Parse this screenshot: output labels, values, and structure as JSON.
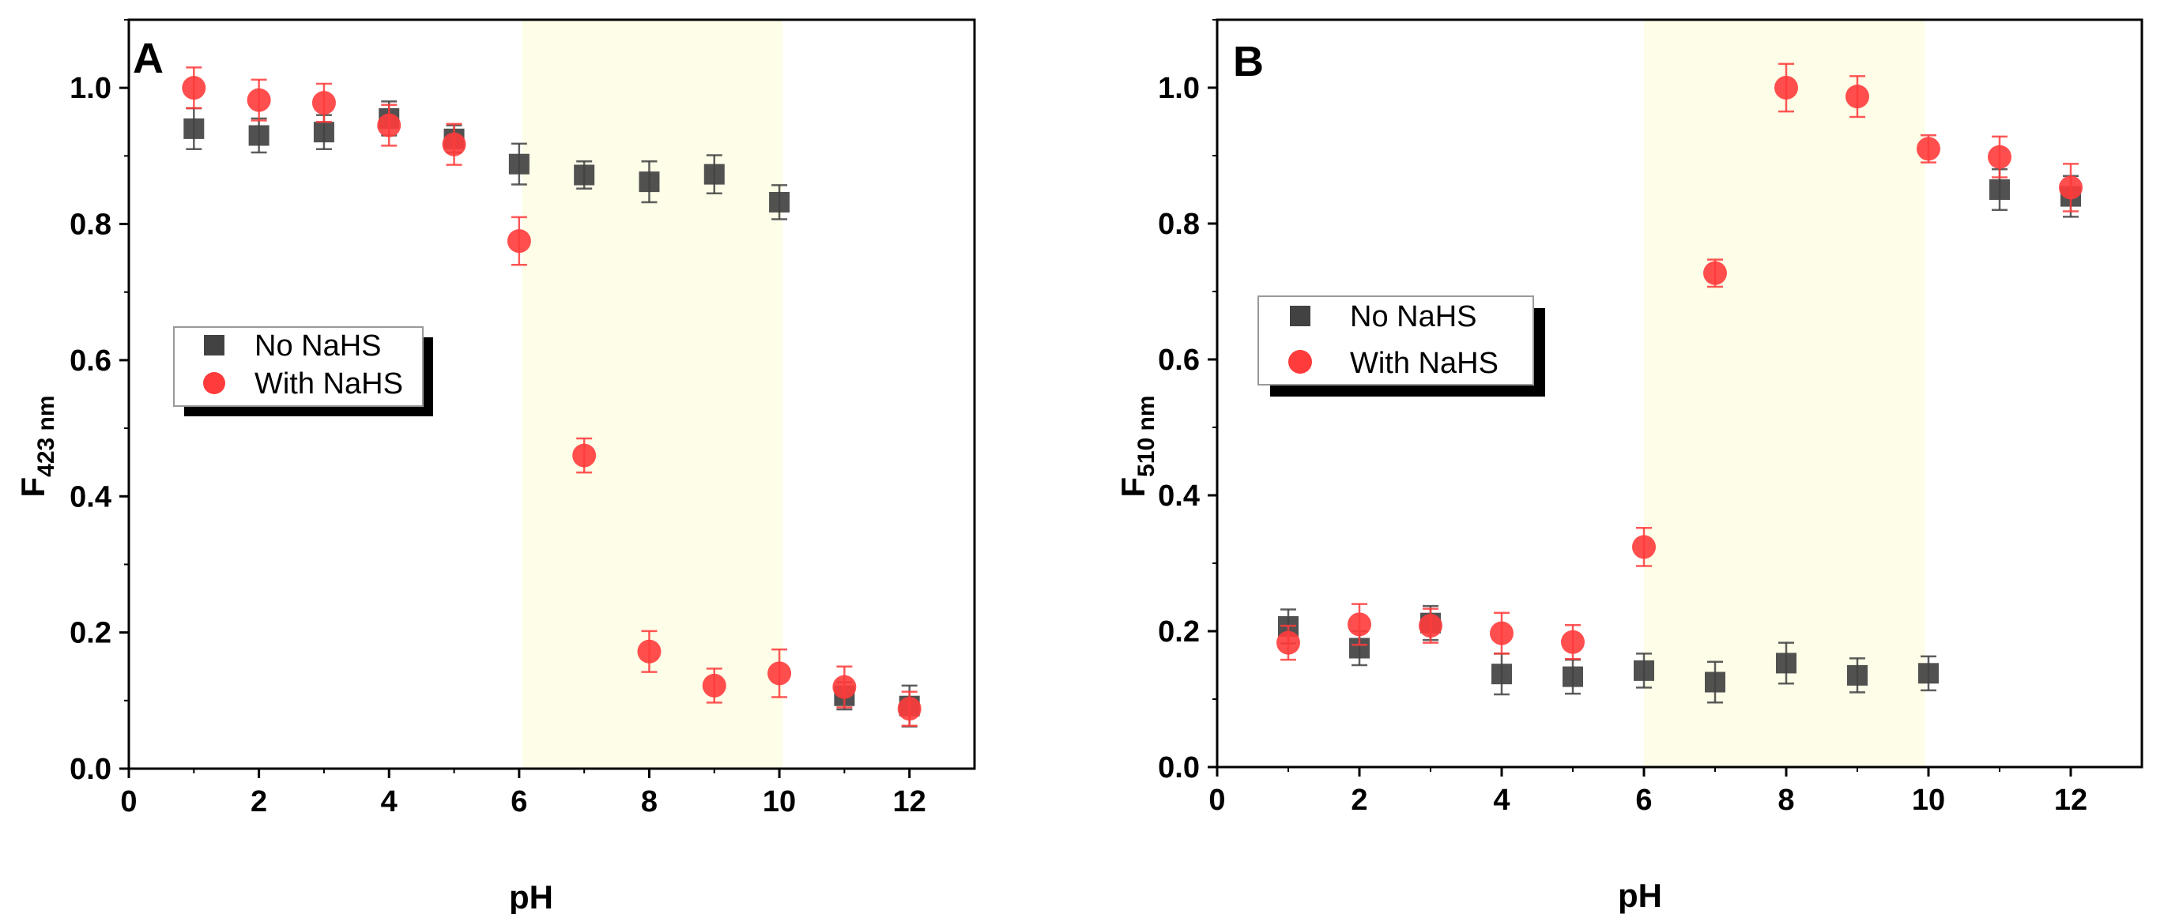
{
  "figure": {
    "panels": [
      "A",
      "B"
    ]
  },
  "colors": {
    "no_nahs": "#424242",
    "no_nahs_error": "#424242",
    "with_nahs": "#ff3b3b",
    "with_nahs_error": "#ff3b3b",
    "highlight": "#fdfde8"
  },
  "chart_data": [
    {
      "type": "scatter",
      "panel_label": "A",
      "title": "",
      "xlabel": "pH",
      "ylabel_main": "F",
      "ylabel_sub": "423 nm",
      "xlim": [
        0,
        13
      ],
      "ylim": [
        0,
        1.1
      ],
      "xticks": [
        0,
        2,
        4,
        6,
        8,
        10,
        12
      ],
      "yticks": [
        0.0,
        0.2,
        0.4,
        0.6,
        0.8,
        1.0
      ],
      "xtick_labels": [
        "0",
        "2",
        "4",
        "6",
        "8",
        "10",
        "12"
      ],
      "ytick_labels": [
        "0.0",
        "0.2",
        "0.4",
        "0.6",
        "0.8",
        "1.0"
      ],
      "highlight_range": [
        6.05,
        10.05
      ],
      "legend": [
        "No NaHS",
        "With NaHS"
      ],
      "series": [
        {
          "name": "No NaHS",
          "marker": "square",
          "x": [
            1,
            2,
            3,
            4,
            5,
            6,
            7,
            8,
            9,
            10,
            11,
            12
          ],
          "y": [
            0.94,
            0.93,
            0.935,
            0.955,
            0.925,
            0.888,
            0.872,
            0.862,
            0.873,
            0.832,
            0.107,
            0.092
          ],
          "err": [
            0.03,
            0.025,
            0.025,
            0.025,
            0.02,
            0.03,
            0.02,
            0.03,
            0.028,
            0.025,
            0.02,
            0.03
          ]
        },
        {
          "name": "With NaHS",
          "marker": "circle",
          "x": [
            1,
            2,
            3,
            4,
            5,
            6,
            7,
            8,
            9,
            10,
            11,
            12
          ],
          "y": [
            1.0,
            0.982,
            0.978,
            0.945,
            0.917,
            0.775,
            0.46,
            0.172,
            0.122,
            0.14,
            0.12,
            0.088
          ],
          "err": [
            0.03,
            0.03,
            0.028,
            0.03,
            0.03,
            0.035,
            0.025,
            0.03,
            0.025,
            0.035,
            0.03,
            0.025
          ]
        }
      ]
    },
    {
      "type": "scatter",
      "panel_label": "B",
      "title": "",
      "xlabel": "pH",
      "ylabel_main": "F",
      "ylabel_sub": "510 nm",
      "xlim": [
        0,
        13
      ],
      "ylim": [
        0,
        1.1
      ],
      "xticks": [
        0,
        2,
        4,
        6,
        8,
        10,
        12
      ],
      "yticks": [
        0.0,
        0.2,
        0.4,
        0.6,
        0.8,
        1.0
      ],
      "xtick_labels": [
        "0",
        "2",
        "4",
        "6",
        "8",
        "10",
        "12"
      ],
      "ytick_labels": [
        "0.0",
        "0.2",
        "0.4",
        "0.6",
        "0.8",
        "1.0"
      ],
      "highlight_range": [
        6.0,
        9.95
      ],
      "legend": [
        "No NaHS",
        "With NaHS"
      ],
      "series": [
        {
          "name": "No NaHS",
          "marker": "square",
          "x": [
            1,
            2,
            3,
            4,
            5,
            6,
            7,
            8,
            9,
            10,
            11,
            12
          ],
          "y": [
            0.207,
            0.175,
            0.212,
            0.137,
            0.133,
            0.142,
            0.125,
            0.153,
            0.135,
            0.138,
            0.85,
            0.84
          ],
          "err": [
            0.025,
            0.025,
            0.025,
            0.03,
            0.025,
            0.025,
            0.03,
            0.03,
            0.025,
            0.025,
            0.03,
            0.03
          ]
        },
        {
          "name": "With NaHS",
          "marker": "circle",
          "x": [
            1,
            2,
            3,
            4,
            5,
            6,
            7,
            8,
            9,
            10,
            11,
            12
          ],
          "y": [
            0.183,
            0.21,
            0.208,
            0.197,
            0.184,
            0.324,
            0.727,
            1.0,
            0.987,
            0.91,
            0.898,
            0.853
          ],
          "err": [
            0.025,
            0.03,
            0.025,
            0.03,
            0.025,
            0.028,
            0.02,
            0.035,
            0.03,
            0.02,
            0.03,
            0.035
          ]
        }
      ]
    }
  ]
}
